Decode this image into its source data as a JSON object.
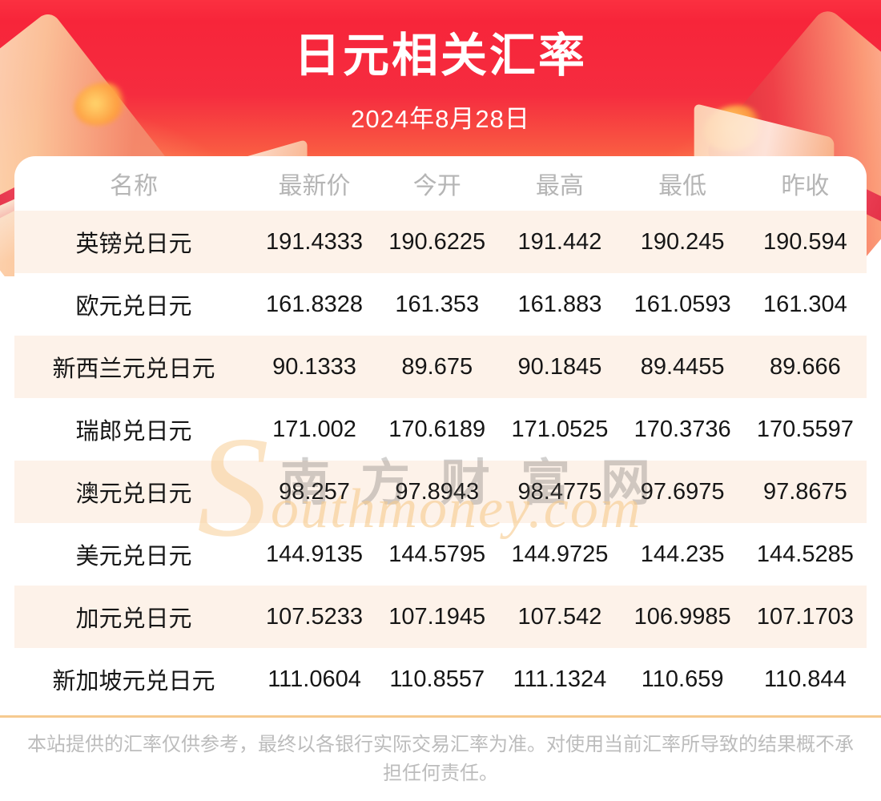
{
  "page": {
    "title": "日元相关汇率",
    "date": "2024年8月28日"
  },
  "chart_data": {
    "type": "table",
    "title": "日元相关汇率",
    "subtitle": "2024年8月28日",
    "columns": [
      "名称",
      "最新价",
      "今开",
      "最高",
      "最低",
      "昨收"
    ],
    "rows": [
      {
        "name": "英镑兑日元",
        "latest": "191.4333",
        "open": "190.6225",
        "high": "191.442",
        "low": "190.245",
        "prev_close": "190.594"
      },
      {
        "name": "欧元兑日元",
        "latest": "161.8328",
        "open": "161.353",
        "high": "161.883",
        "low": "161.0593",
        "prev_close": "161.304"
      },
      {
        "name": "新西兰元兑日元",
        "latest": "90.1333",
        "open": "89.675",
        "high": "90.1845",
        "low": "89.4455",
        "prev_close": "89.666"
      },
      {
        "name": "瑞郎兑日元",
        "latest": "171.002",
        "open": "170.6189",
        "high": "171.0525",
        "low": "170.3736",
        "prev_close": "170.5597"
      },
      {
        "name": "澳元兑日元",
        "latest": "98.257",
        "open": "97.8943",
        "high": "98.4775",
        "low": "97.6975",
        "prev_close": "97.8675"
      },
      {
        "name": "美元兑日元",
        "latest": "144.9135",
        "open": "144.5795",
        "high": "144.9725",
        "low": "144.235",
        "prev_close": "144.5285"
      },
      {
        "name": "加元兑日元",
        "latest": "107.5233",
        "open": "107.1945",
        "high": "107.542",
        "low": "106.9985",
        "prev_close": "107.1703"
      },
      {
        "name": "新加坡元兑日元",
        "latest": "111.0604",
        "open": "110.8557",
        "high": "111.1324",
        "low": "110.659",
        "prev_close": "110.844"
      }
    ],
    "row_stripe_on": true,
    "legend_position": "none"
  },
  "watermark": {
    "initial": "S",
    "en": "outhmoney.com",
    "cn": "南方财富网"
  },
  "footer": {
    "disclaimer": "本站提供的汇率仅供参考，最终以各银行实际交易汇率为准。对使用当前汇率所导致的结果概不承担任何责任。"
  },
  "colors": {
    "header_red": "#f52c3f",
    "header_orange": "#ffa76e",
    "row_stripe": "#fdf2e9",
    "divider": "#f6ca90",
    "column_header_text": "#b5b5b5",
    "body_text": "#161616",
    "watermark_orange": "#f7c98c",
    "disclaimer_text": "#bcbcbc"
  }
}
